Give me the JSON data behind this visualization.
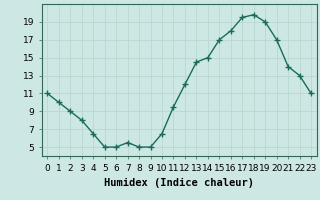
{
  "x": [
    0,
    1,
    2,
    3,
    4,
    5,
    6,
    7,
    8,
    9,
    10,
    11,
    12,
    13,
    14,
    15,
    16,
    17,
    18,
    19,
    20,
    21,
    22,
    23
  ],
  "y": [
    11,
    10,
    9,
    8,
    6.5,
    5,
    5,
    5.5,
    5,
    5,
    6.5,
    9.5,
    12,
    14.5,
    15,
    17,
    18,
    19.5,
    19.8,
    19,
    17,
    14,
    13,
    11
  ],
  "line_color": "#1a6b5a",
  "marker": "+",
  "marker_size": 4,
  "marker_lw": 1.0,
  "line_width": 1.0,
  "bg_color": "#cde8e4",
  "grid_color": "#b8d8d2",
  "xlabel": "Humidex (Indice chaleur)",
  "xlabel_fontsize": 7.5,
  "ylim": [
    4,
    21
  ],
  "xlim": [
    -0.5,
    23.5
  ],
  "yticks": [
    5,
    7,
    9,
    11,
    13,
    15,
    17,
    19
  ],
  "xtick_labels": [
    "0",
    "1",
    "2",
    "3",
    "4",
    "5",
    "6",
    "7",
    "8",
    "9",
    "10",
    "11",
    "12",
    "13",
    "14",
    "15",
    "16",
    "17",
    "18",
    "19",
    "20",
    "21",
    "22",
    "23"
  ],
  "tick_fontsize": 6.5,
  "spine_color": "#336655"
}
